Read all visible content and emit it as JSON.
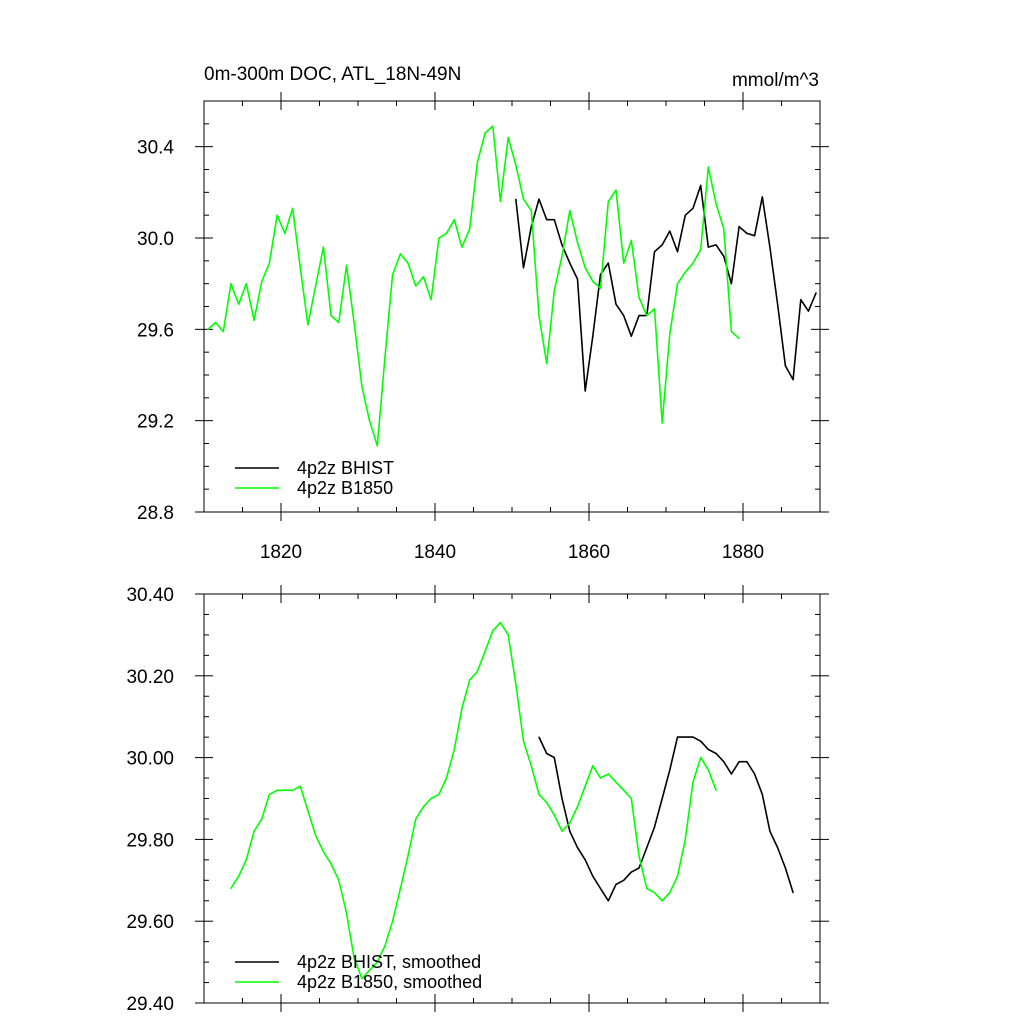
{
  "chart_data": [
    {
      "type": "line",
      "title_left": "0m-300m DOC, ATL_18N-49N",
      "title_right": "mmol/m^3",
      "xlim": [
        1810,
        1890
      ],
      "ylim": [
        28.8,
        30.6
      ],
      "x_ticks": [
        1820,
        1840,
        1860,
        1880
      ],
      "x_tick_labels": [
        "1820",
        "1840",
        "1860",
        "1880"
      ],
      "y_ticks": [
        28.8,
        29.2,
        29.6,
        30.0,
        30.4
      ],
      "y_tick_labels": [
        "28.8",
        "29.2",
        "29.6",
        "30.0",
        "30.4"
      ],
      "grid": false,
      "legend_position": "bottom-left",
      "series": [
        {
          "name": "4p2z BHIST",
          "color": "#000000",
          "x": [
            1850.5,
            1851.5,
            1852.5,
            1853.5,
            1854.5,
            1855.5,
            1856.5,
            1857.5,
            1858.5,
            1859.5,
            1860.5,
            1861.5,
            1862.5,
            1863.5,
            1864.5,
            1865.5,
            1866.5,
            1867.5,
            1868.5,
            1869.5,
            1870.5,
            1871.5,
            1872.5,
            1873.5,
            1874.5,
            1875.5,
            1876.5,
            1877.5,
            1878.5,
            1879.5,
            1880.5,
            1881.5,
            1882.5,
            1883.5,
            1884.5,
            1885.5,
            1886.5,
            1887.5,
            1888.5,
            1889.5
          ],
          "y": [
            30.17,
            29.87,
            30.05,
            30.17,
            30.08,
            30.08,
            29.97,
            29.89,
            29.82,
            29.33,
            29.57,
            29.84,
            29.89,
            29.71,
            29.66,
            29.57,
            29.66,
            29.66,
            29.94,
            29.97,
            30.03,
            29.94,
            30.1,
            30.13,
            30.23,
            29.96,
            29.97,
            29.92,
            29.8,
            30.05,
            30.02,
            30.01,
            30.18,
            29.96,
            29.71,
            29.44,
            29.38,
            29.73,
            29.68,
            29.76
          ]
        },
        {
          "name": "4p2z B1850",
          "color": "#00ff00",
          "x": [
            1810.5,
            1811.5,
            1812.5,
            1813.5,
            1814.5,
            1815.5,
            1816.5,
            1817.5,
            1818.5,
            1819.5,
            1820.5,
            1821.5,
            1822.5,
            1823.5,
            1824.5,
            1825.5,
            1826.5,
            1827.5,
            1828.5,
            1829.5,
            1830.5,
            1831.5,
            1832.5,
            1833.5,
            1834.5,
            1835.5,
            1836.5,
            1837.5,
            1838.5,
            1839.5,
            1840.5,
            1841.5,
            1842.5,
            1843.5,
            1844.5,
            1845.5,
            1846.5,
            1847.5,
            1848.5,
            1849.5,
            1850.5,
            1851.5,
            1852.5,
            1853.5,
            1854.5,
            1855.5,
            1856.5,
            1857.5,
            1858.5,
            1859.5,
            1860.5,
            1861.5,
            1862.5,
            1863.5,
            1864.5,
            1865.5,
            1866.5,
            1867.5,
            1868.5,
            1869.5,
            1870.5,
            1871.5,
            1872.5,
            1873.5,
            1874.5,
            1875.5,
            1876.5,
            1877.5,
            1878.5,
            1879.5
          ],
          "y": [
            29.6,
            29.63,
            29.59,
            29.8,
            29.71,
            29.8,
            29.64,
            29.81,
            29.89,
            30.1,
            30.02,
            30.13,
            29.87,
            29.62,
            29.79,
            29.96,
            29.66,
            29.63,
            29.88,
            29.63,
            29.35,
            29.2,
            29.09,
            29.48,
            29.84,
            29.93,
            29.89,
            29.79,
            29.83,
            29.73,
            30.0,
            30.02,
            30.08,
            29.96,
            30.04,
            30.33,
            30.46,
            30.49,
            30.16,
            30.44,
            30.32,
            30.17,
            30.12,
            29.66,
            29.45,
            29.77,
            29.92,
            30.12,
            29.98,
            29.87,
            29.81,
            29.78,
            30.16,
            30.21,
            29.89,
            29.99,
            29.74,
            29.66,
            29.69,
            29.19,
            29.58,
            29.8,
            29.85,
            29.89,
            29.95,
            30.31,
            30.15,
            30.04,
            29.59,
            29.56
          ]
        }
      ]
    },
    {
      "type": "line",
      "xlim": [
        1810,
        1890
      ],
      "ylim": [
        29.4,
        30.4
      ],
      "x_ticks": [
        1820,
        1840,
        1860,
        1880
      ],
      "y_ticks": [
        29.4,
        29.6,
        29.8,
        30.0,
        30.2,
        30.4
      ],
      "y_tick_labels": [
        "29.40",
        "29.60",
        "29.80",
        "30.00",
        "30.20",
        "30.40"
      ],
      "grid": false,
      "legend_position": "bottom-left",
      "series": [
        {
          "name": "4p2z BHIST, smoothed",
          "color": "#000000",
          "x": [
            1853.5,
            1854.5,
            1855.5,
            1856.5,
            1857.5,
            1858.5,
            1859.5,
            1860.5,
            1861.5,
            1862.5,
            1863.5,
            1864.5,
            1865.5,
            1866.5,
            1867.5,
            1868.5,
            1869.5,
            1870.5,
            1871.5,
            1872.5,
            1873.5,
            1874.5,
            1875.5,
            1876.5,
            1877.5,
            1878.5,
            1879.5,
            1880.5,
            1881.5,
            1882.5,
            1883.5,
            1884.5,
            1885.5,
            1886.5
          ],
          "y": [
            30.05,
            30.01,
            30.0,
            29.9,
            29.82,
            29.78,
            29.75,
            29.71,
            29.68,
            29.65,
            29.69,
            29.7,
            29.72,
            29.73,
            29.78,
            29.83,
            29.9,
            29.97,
            30.05,
            30.05,
            30.05,
            30.04,
            30.02,
            30.01,
            29.99,
            29.96,
            29.99,
            29.99,
            29.96,
            29.91,
            29.82,
            29.78,
            29.73,
            29.67
          ]
        },
        {
          "name": "4p2z B1850, smoothed",
          "color": "#00ff00",
          "x": [
            1813.5,
            1814.5,
            1815.5,
            1816.5,
            1817.5,
            1818.5,
            1819.5,
            1820.5,
            1821.5,
            1822.5,
            1823.5,
            1824.5,
            1825.5,
            1826.5,
            1827.5,
            1828.5,
            1829.5,
            1830.5,
            1831.5,
            1832.5,
            1833.5,
            1834.5,
            1835.5,
            1836.5,
            1837.5,
            1838.5,
            1839.5,
            1840.5,
            1841.5,
            1842.5,
            1843.5,
            1844.5,
            1845.5,
            1846.5,
            1847.5,
            1848.5,
            1849.5,
            1850.5,
            1851.5,
            1852.5,
            1853.5,
            1854.5,
            1855.5,
            1856.5,
            1857.5,
            1858.5,
            1859.5,
            1860.5,
            1861.5,
            1862.5,
            1863.5,
            1864.5,
            1865.5,
            1866.5,
            1867.5,
            1868.5,
            1869.5,
            1870.5,
            1871.5,
            1872.5,
            1873.5,
            1874.5,
            1875.5,
            1876.5
          ],
          "y": [
            29.68,
            29.71,
            29.75,
            29.82,
            29.85,
            29.91,
            29.92,
            29.92,
            29.92,
            29.93,
            29.87,
            29.81,
            29.77,
            29.74,
            29.7,
            29.62,
            29.51,
            29.46,
            29.48,
            29.5,
            29.54,
            29.6,
            29.68,
            29.76,
            29.85,
            29.88,
            29.9,
            29.91,
            29.95,
            30.02,
            30.12,
            30.19,
            30.21,
            30.26,
            30.31,
            30.33,
            30.3,
            30.18,
            30.04,
            29.98,
            29.91,
            29.89,
            29.86,
            29.82,
            29.84,
            29.88,
            29.93,
            29.98,
            29.95,
            29.96,
            29.94,
            29.92,
            29.9,
            29.76,
            29.68,
            29.67,
            29.65,
            29.67,
            29.71,
            29.8,
            29.94,
            30.0,
            29.97,
            29.92
          ]
        }
      ]
    }
  ]
}
